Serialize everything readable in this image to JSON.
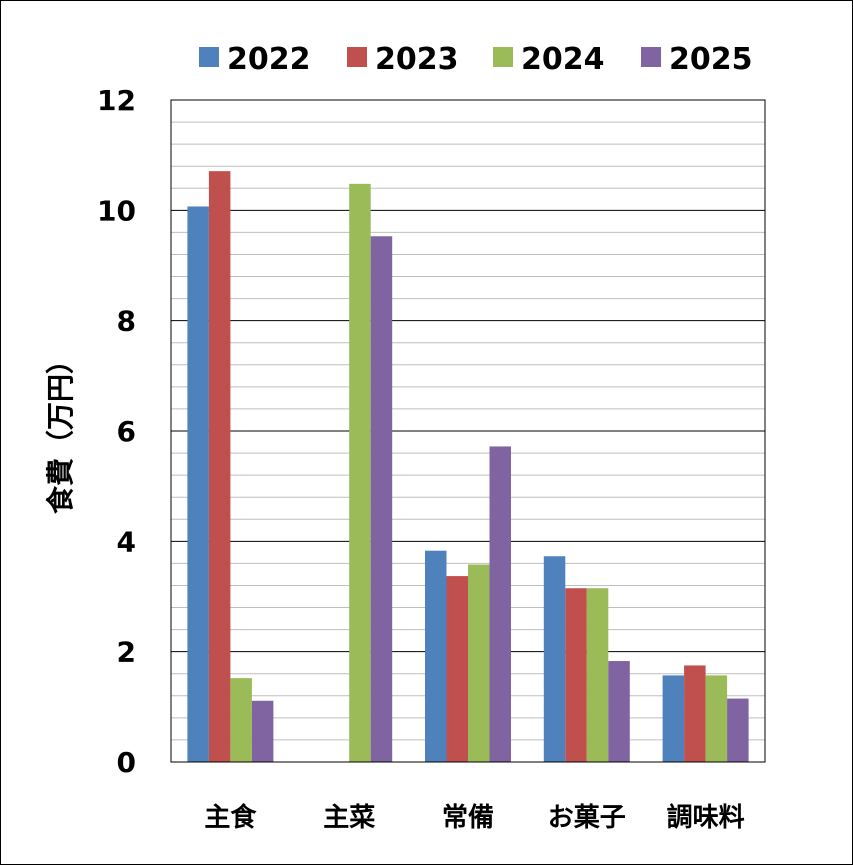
{
  "chart_data": {
    "type": "bar",
    "ylabel": "食費（万円）",
    "ylim": [
      0,
      12
    ],
    "yticks": [
      "0",
      "2",
      "4",
      "6",
      "8",
      "10",
      "12"
    ],
    "minor_grid": 0.4,
    "grid": true,
    "legend_position": "top",
    "categories": [
      "主食",
      "主菜",
      "常備",
      "お菓子",
      "調味料"
    ],
    "series": [
      {
        "name": "2022",
        "color": "#4f81bd",
        "values": [
          10.07,
          0,
          3.83,
          3.73,
          1.57
        ]
      },
      {
        "name": "2023",
        "color": "#c0504d",
        "values": [
          10.71,
          0,
          3.37,
          3.15,
          1.75
        ]
      },
      {
        "name": "2024",
        "color": "#9bbb59",
        "values": [
          1.52,
          10.48,
          3.58,
          3.15,
          1.57
        ]
      },
      {
        "name": "2025",
        "color": "#8064a2",
        "values": [
          1.11,
          9.53,
          5.72,
          1.83,
          1.15
        ]
      }
    ]
  }
}
